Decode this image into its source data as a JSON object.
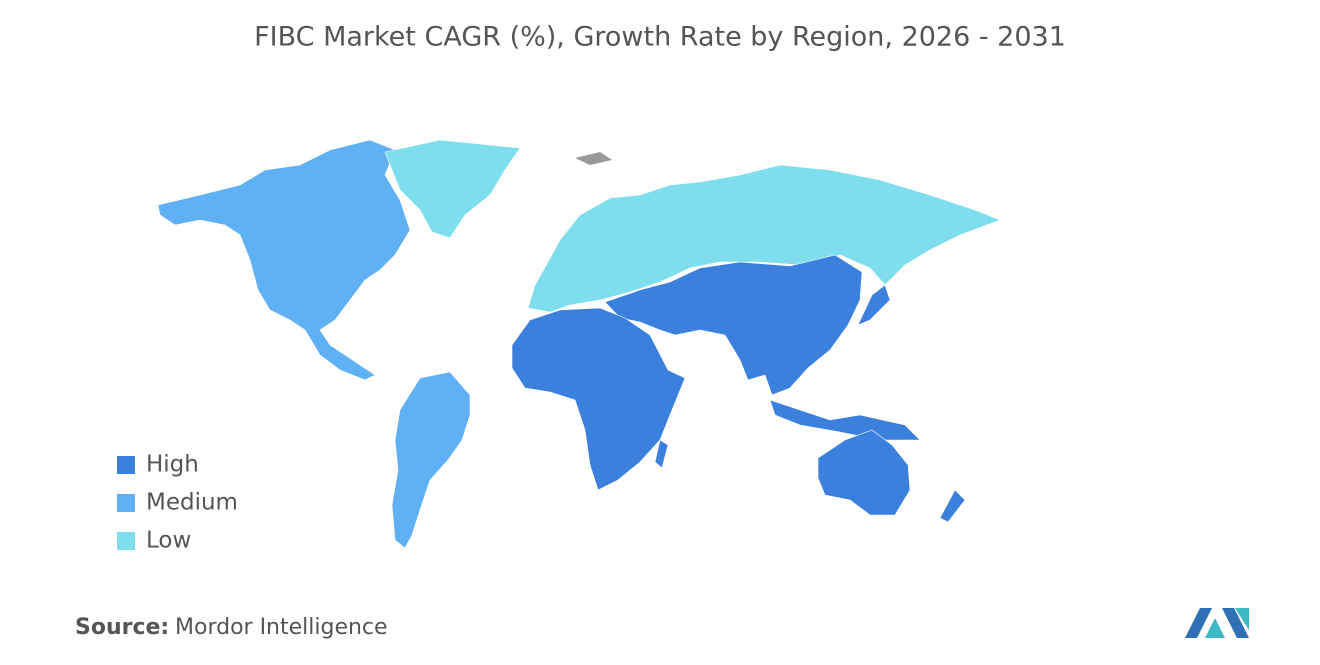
{
  "title": "FIBC Market CAGR (%), Growth Rate by Region, 2026 - 2031",
  "legend": [
    {
      "label": "High",
      "color": "#3a80dc"
    },
    {
      "label": "Medium",
      "color": "#5fb0f4"
    },
    {
      "label": "Low",
      "color": "#7fdeee"
    }
  ],
  "source": {
    "label": "Source:",
    "text": "Mordor Intelligence"
  }
}
